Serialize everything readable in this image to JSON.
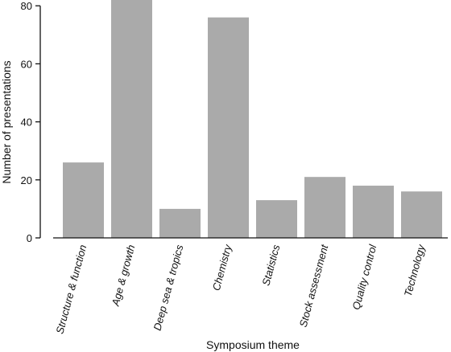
{
  "chart_data": {
    "type": "bar",
    "categories": [
      "Structure & function",
      "Age & growth",
      "Deep sea & tropics",
      "Chemistry",
      "Statistics",
      "Stock assessment",
      "Quality control",
      "Technology"
    ],
    "values": [
      26,
      82,
      10,
      76,
      13,
      21,
      18,
      16
    ],
    "xlabel": "Symposium theme",
    "ylabel": "Number of presentations",
    "ylim": [
      0,
      82
    ],
    "yticks": [
      0,
      20,
      40,
      60,
      80
    ],
    "bar_color": "#aaaaaa",
    "grid": false,
    "legend": "none"
  }
}
